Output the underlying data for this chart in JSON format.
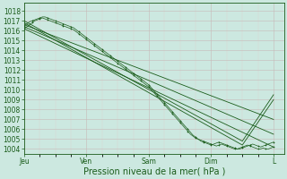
{
  "xlabel": "Pression niveau de la mer( hPa )",
  "bg_color": "#cce8e0",
  "grid_major_color": "#c8b8b8",
  "grid_minor_color": "#ddd0d0",
  "line_color": "#1a5c1a",
  "tick_label_color": "#1a5c1a",
  "ylim": [
    1003.5,
    1018.8
  ],
  "yticks": [
    1004,
    1005,
    1006,
    1007,
    1008,
    1009,
    1010,
    1011,
    1012,
    1013,
    1014,
    1015,
    1016,
    1017,
    1018
  ],
  "xtick_labels": [
    "Jeu",
    "Ven",
    "Sam",
    "Dim",
    "L"
  ],
  "xtick_positions": [
    0,
    24,
    48,
    72,
    96
  ],
  "xlim": [
    0,
    100
  ],
  "smooth_lines": [
    {
      "x": [
        0,
        96
      ],
      "y": [
        1016.2,
        1004.2
      ]
    },
    {
      "x": [
        0,
        96
      ],
      "y": [
        1016.4,
        1005.5
      ]
    },
    {
      "x": [
        0,
        96
      ],
      "y": [
        1016.6,
        1007.0
      ]
    },
    {
      "x": [
        0,
        84,
        96
      ],
      "y": [
        1016.8,
        1004.4,
        1009.0
      ]
    },
    {
      "x": [
        0,
        84,
        96
      ],
      "y": [
        1017.0,
        1004.8,
        1009.5
      ]
    }
  ],
  "detailed_lines": [
    {
      "x": [
        0,
        1,
        2,
        3,
        4,
        5,
        6,
        7,
        8,
        9,
        10,
        11,
        12,
        13,
        14,
        15,
        16,
        17,
        18,
        19,
        20,
        21,
        22,
        23,
        24,
        25,
        26,
        27,
        28,
        29,
        30,
        31,
        32,
        33,
        34,
        35,
        36,
        37,
        38,
        39,
        40,
        41,
        42,
        43,
        44,
        45,
        46,
        47,
        48,
        49,
        50,
        51,
        52,
        53,
        54,
        55,
        56,
        57,
        58,
        59,
        60,
        61,
        62,
        63,
        64,
        65,
        66,
        67,
        68,
        69,
        70,
        71,
        72,
        73,
        74,
        75,
        76,
        77,
        78,
        79,
        80,
        81,
        82,
        83,
        84,
        85,
        86,
        87,
        88,
        89,
        90,
        91,
        92,
        93,
        94,
        95,
        96
      ],
      "y": [
        1016.2,
        1016.4,
        1016.6,
        1016.8,
        1017.0,
        1017.1,
        1017.2,
        1017.3,
        1017.2,
        1017.1,
        1017.0,
        1016.9,
        1016.8,
        1016.7,
        1016.6,
        1016.5,
        1016.4,
        1016.3,
        1016.2,
        1016.1,
        1015.9,
        1015.7,
        1015.5,
        1015.3,
        1015.1,
        1014.9,
        1014.7,
        1014.5,
        1014.3,
        1014.1,
        1013.9,
        1013.7,
        1013.5,
        1013.3,
        1013.1,
        1012.9,
        1012.7,
        1012.5,
        1012.3,
        1012.1,
        1011.9,
        1011.7,
        1011.5,
        1011.3,
        1011.1,
        1010.9,
        1010.7,
        1010.5,
        1010.3,
        1010.0,
        1009.7,
        1009.4,
        1009.1,
        1008.8,
        1008.5,
        1008.2,
        1007.9,
        1007.6,
        1007.3,
        1007.0,
        1006.7,
        1006.4,
        1006.1,
        1005.8,
        1005.5,
        1005.3,
        1005.1,
        1005.0,
        1004.9,
        1004.8,
        1004.7,
        1004.6,
        1004.5,
        1004.4,
        1004.3,
        1004.4,
        1004.5,
        1004.4,
        1004.3,
        1004.2,
        1004.1,
        1004.0,
        1004.0,
        1004.1,
        1004.2,
        1004.3,
        1004.4,
        1004.3,
        1004.2,
        1004.1,
        1004.0,
        1004.0,
        1004.1,
        1004.0,
        1004.0,
        1004.1,
        1004.2
      ]
    },
    {
      "x": [
        0,
        1,
        2,
        3,
        4,
        5,
        6,
        7,
        8,
        9,
        10,
        11,
        12,
        13,
        14,
        15,
        16,
        17,
        18,
        19,
        20,
        21,
        22,
        23,
        24,
        25,
        26,
        27,
        28,
        29,
        30,
        31,
        32,
        33,
        34,
        35,
        36,
        37,
        38,
        39,
        40,
        41,
        42,
        43,
        44,
        45,
        46,
        47,
        48,
        49,
        50,
        51,
        52,
        53,
        54,
        55,
        56,
        57,
        58,
        59,
        60,
        61,
        62,
        63,
        64,
        65,
        66,
        67,
        68,
        69,
        70,
        71,
        72,
        73,
        74,
        75,
        76,
        77,
        78,
        79,
        80,
        81,
        82,
        83,
        84,
        85,
        86,
        87,
        88,
        89,
        90,
        91,
        92,
        93,
        94,
        95,
        96
      ],
      "y": [
        1016.5,
        1016.7,
        1016.9,
        1017.0,
        1017.1,
        1017.2,
        1017.3,
        1017.4,
        1017.4,
        1017.3,
        1017.2,
        1017.1,
        1017.0,
        1016.9,
        1016.8,
        1016.7,
        1016.6,
        1016.5,
        1016.4,
        1016.3,
        1016.1,
        1015.9,
        1015.7,
        1015.5,
        1015.3,
        1015.1,
        1014.9,
        1014.7,
        1014.5,
        1014.3,
        1014.1,
        1013.9,
        1013.7,
        1013.5,
        1013.3,
        1013.1,
        1012.9,
        1012.7,
        1012.5,
        1012.3,
        1012.1,
        1011.9,
        1011.7,
        1011.5,
        1011.3,
        1011.1,
        1010.9,
        1010.7,
        1010.5,
        1010.2,
        1009.9,
        1009.6,
        1009.3,
        1009.0,
        1008.7,
        1008.4,
        1008.1,
        1007.8,
        1007.5,
        1007.2,
        1006.9,
        1006.6,
        1006.3,
        1006.0,
        1005.7,
        1005.4,
        1005.2,
        1005.0,
        1004.8,
        1004.7,
        1004.6,
        1004.5,
        1004.4,
        1004.5,
        1004.6,
        1004.7,
        1004.6,
        1004.5,
        1004.4,
        1004.3,
        1004.2,
        1004.1,
        1004.0,
        1004.0,
        1004.1,
        1004.2,
        1004.3,
        1004.4,
        1004.5,
        1004.4,
        1004.3,
        1004.2,
        1004.3,
        1004.4,
        1004.5,
        1004.6,
        1004.7
      ]
    }
  ],
  "figsize": [
    3.2,
    2.0
  ],
  "dpi": 100
}
